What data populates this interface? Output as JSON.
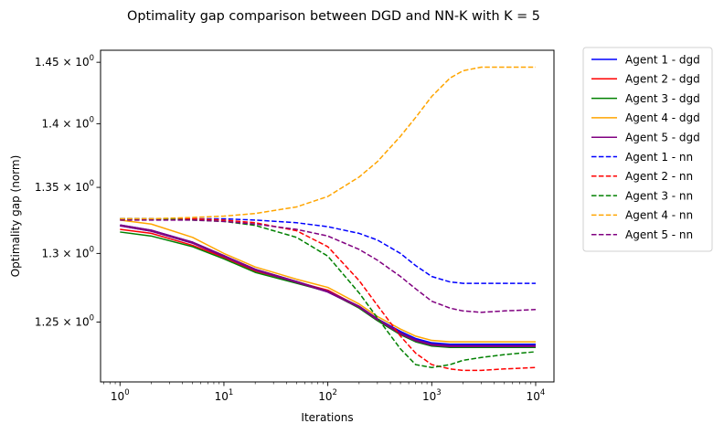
{
  "chart_data": {
    "type": "line",
    "title": "Optimality gap comparison between DGD and NN-K with K = 5",
    "xlabel": "Iterations",
    "ylabel": "Optimality gap (norm)",
    "xscale": "log",
    "yscale": "log",
    "xlim": [
      0.65,
      15000
    ],
    "ylim": [
      1.208,
      1.46
    ],
    "grid": false,
    "legend_position": "outside-right",
    "x_ticks": [
      {
        "value": 1,
        "base": "10",
        "exp": "0"
      },
      {
        "value": 10,
        "base": "10",
        "exp": "1"
      },
      {
        "value": 100,
        "base": "10",
        "exp": "2"
      },
      {
        "value": 1000,
        "base": "10",
        "exp": "3"
      },
      {
        "value": 10000,
        "base": "10",
        "exp": "4"
      }
    ],
    "y_ticks": [
      {
        "value": 1.25,
        "mantissa": "1.25 × ",
        "base": "10",
        "exp": "0"
      },
      {
        "value": 1.3,
        "mantissa": "1.3 × ",
        "base": "10",
        "exp": "0"
      },
      {
        "value": 1.35,
        "mantissa": "1.35 × ",
        "base": "10",
        "exp": "0"
      },
      {
        "value": 1.4,
        "mantissa": "1.4 × ",
        "base": "10",
        "exp": "0"
      },
      {
        "value": 1.45,
        "mantissa": "1.45 × ",
        "base": "10",
        "exp": "0"
      }
    ],
    "x": [
      1,
      2,
      5,
      10,
      20,
      50,
      100,
      200,
      300,
      500,
      700,
      1000,
      1500,
      2000,
      3000,
      5000,
      10000
    ],
    "series": [
      {
        "name": "Agent 1 - dgd",
        "color": "#0000ff",
        "style": "solid",
        "width": 2.5,
        "values": [
          1.321,
          1.317,
          1.308,
          1.298,
          1.288,
          1.279,
          1.272,
          1.261,
          1.252,
          1.243,
          1.238,
          1.235,
          1.234,
          1.234,
          1.234,
          1.234,
          1.234
        ]
      },
      {
        "name": "Agent 2 - dgd",
        "color": "#ff0000",
        "style": "solid",
        "width": 1.5,
        "values": [
          1.318,
          1.315,
          1.306,
          1.297,
          1.287,
          1.279,
          1.273,
          1.261,
          1.252,
          1.242,
          1.237,
          1.234,
          1.233,
          1.233,
          1.233,
          1.233,
          1.233
        ]
      },
      {
        "name": "Agent 3 - dgd",
        "color": "#008000",
        "style": "solid",
        "width": 1.5,
        "values": [
          1.316,
          1.313,
          1.305,
          1.296,
          1.286,
          1.278,
          1.272,
          1.26,
          1.251,
          1.241,
          1.236,
          1.233,
          1.232,
          1.232,
          1.232,
          1.232,
          1.232
        ]
      },
      {
        "name": "Agent 4 - dgd",
        "color": "#ffa500",
        "style": "solid",
        "width": 1.5,
        "values": [
          1.325,
          1.322,
          1.312,
          1.3,
          1.29,
          1.281,
          1.275,
          1.263,
          1.254,
          1.245,
          1.24,
          1.237,
          1.236,
          1.236,
          1.236,
          1.236,
          1.236
        ]
      },
      {
        "name": "Agent 5 - dgd",
        "color": "#800080",
        "style": "solid",
        "width": 2.5,
        "values": [
          1.321,
          1.317,
          1.308,
          1.298,
          1.288,
          1.279,
          1.272,
          1.261,
          1.252,
          1.242,
          1.237,
          1.234,
          1.233,
          1.233,
          1.233,
          1.233,
          1.233
        ]
      },
      {
        "name": "Agent 1 - nn",
        "color": "#0000ff",
        "style": "dashed",
        "width": 1.5,
        "values": [
          1.326,
          1.326,
          1.326,
          1.326,
          1.325,
          1.323,
          1.32,
          1.315,
          1.31,
          1.3,
          1.291,
          1.283,
          1.279,
          1.278,
          1.278,
          1.278,
          1.278
        ]
      },
      {
        "name": "Agent 2 - nn",
        "color": "#ff0000",
        "style": "dashed",
        "width": 1.5,
        "values": [
          1.326,
          1.326,
          1.326,
          1.325,
          1.323,
          1.317,
          1.305,
          1.28,
          1.262,
          1.24,
          1.228,
          1.22,
          1.217,
          1.216,
          1.216,
          1.217,
          1.218
        ]
      },
      {
        "name": "Agent 3 - nn",
        "color": "#008000",
        "style": "dashed",
        "width": 1.5,
        "values": [
          1.326,
          1.326,
          1.325,
          1.324,
          1.321,
          1.312,
          1.298,
          1.271,
          1.253,
          1.231,
          1.22,
          1.218,
          1.22,
          1.223,
          1.225,
          1.227,
          1.229
        ]
      },
      {
        "name": "Agent 4 - nn",
        "color": "#ffa500",
        "style": "dashed",
        "width": 1.5,
        "values": [
          1.326,
          1.326,
          1.327,
          1.328,
          1.33,
          1.335,
          1.343,
          1.358,
          1.37,
          1.39,
          1.405,
          1.422,
          1.437,
          1.443,
          1.446,
          1.446,
          1.446
        ]
      },
      {
        "name": "Agent 5 - nn",
        "color": "#800080",
        "style": "dashed",
        "width": 1.5,
        "values": [
          1.325,
          1.325,
          1.325,
          1.324,
          1.322,
          1.318,
          1.313,
          1.303,
          1.295,
          1.283,
          1.274,
          1.265,
          1.26,
          1.258,
          1.257,
          1.258,
          1.259
        ]
      }
    ]
  }
}
